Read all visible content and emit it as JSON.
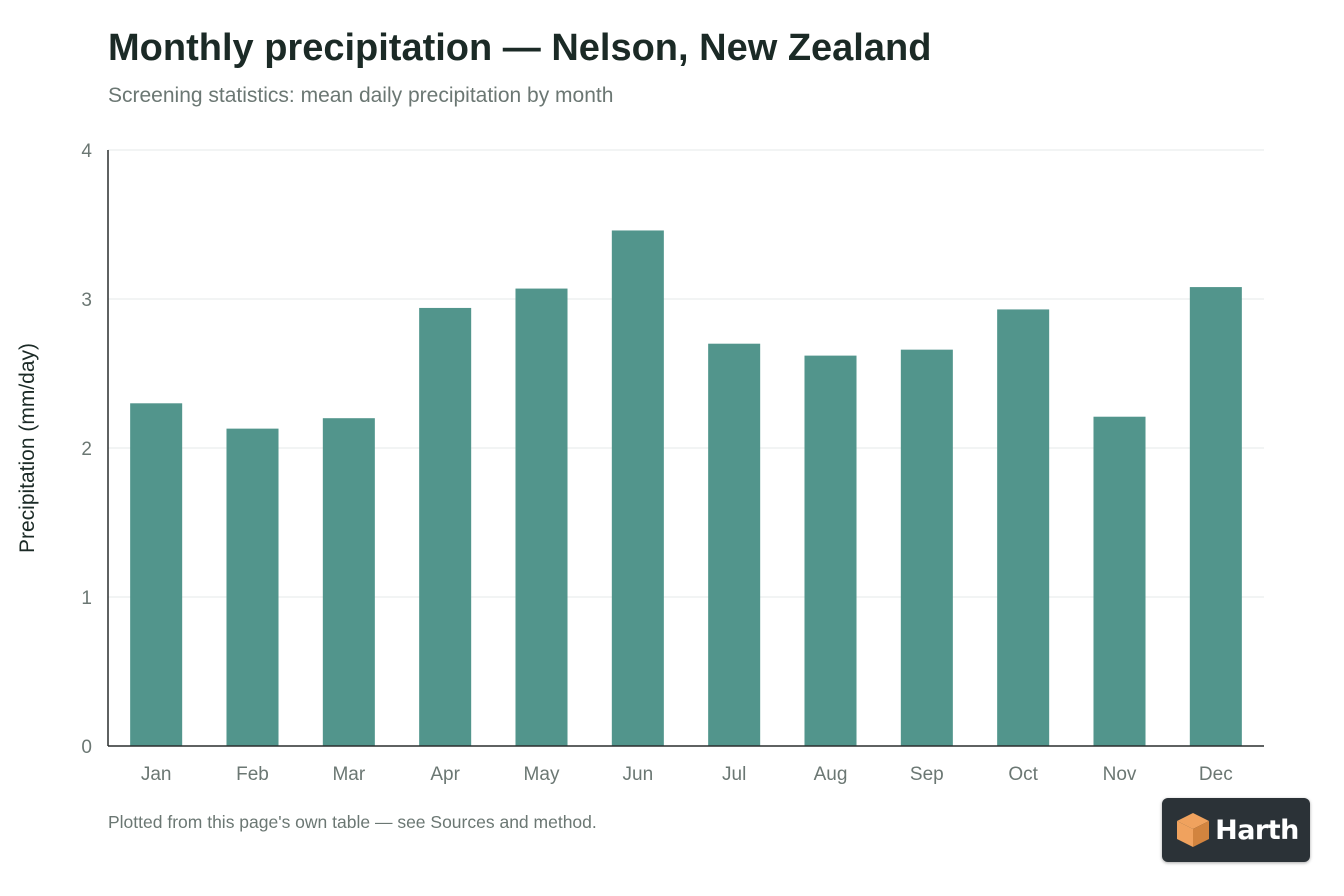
{
  "header": {
    "title": "Monthly precipitation — Nelson, New Zealand",
    "subtitle": "Screening statistics: mean daily precipitation by month"
  },
  "footer": {
    "note": "Plotted from this page's own table — see Sources and method."
  },
  "brand": {
    "name": "Harth",
    "icon": "cube-logo-icon",
    "colors": {
      "badge_background": "#2b3237",
      "icon_primary": "#f0a25e",
      "icon_dark": "#d2843f"
    }
  },
  "colors": {
    "bar": "#52958c",
    "grid": "#e6e9e8",
    "axis": "#2a2f2e",
    "tick_text": "#6b7773",
    "title_text": "#1b2a26"
  },
  "chart_data": {
    "type": "bar",
    "title": "Monthly precipitation — Nelson, New Zealand",
    "subtitle": "Screening statistics: mean daily precipitation by month",
    "xlabel": "",
    "ylabel": "Precipitation (mm/day)",
    "categories": [
      "Jan",
      "Feb",
      "Mar",
      "Apr",
      "May",
      "Jun",
      "Jul",
      "Aug",
      "Sep",
      "Oct",
      "Nov",
      "Dec"
    ],
    "values": [
      2.3,
      2.13,
      2.2,
      2.94,
      3.07,
      3.46,
      2.7,
      2.62,
      2.66,
      2.93,
      2.21,
      3.08
    ],
    "ylim": [
      0,
      4
    ],
    "yticks": [
      0,
      1,
      2,
      3,
      4
    ],
    "grid": true,
    "legend": "none"
  }
}
